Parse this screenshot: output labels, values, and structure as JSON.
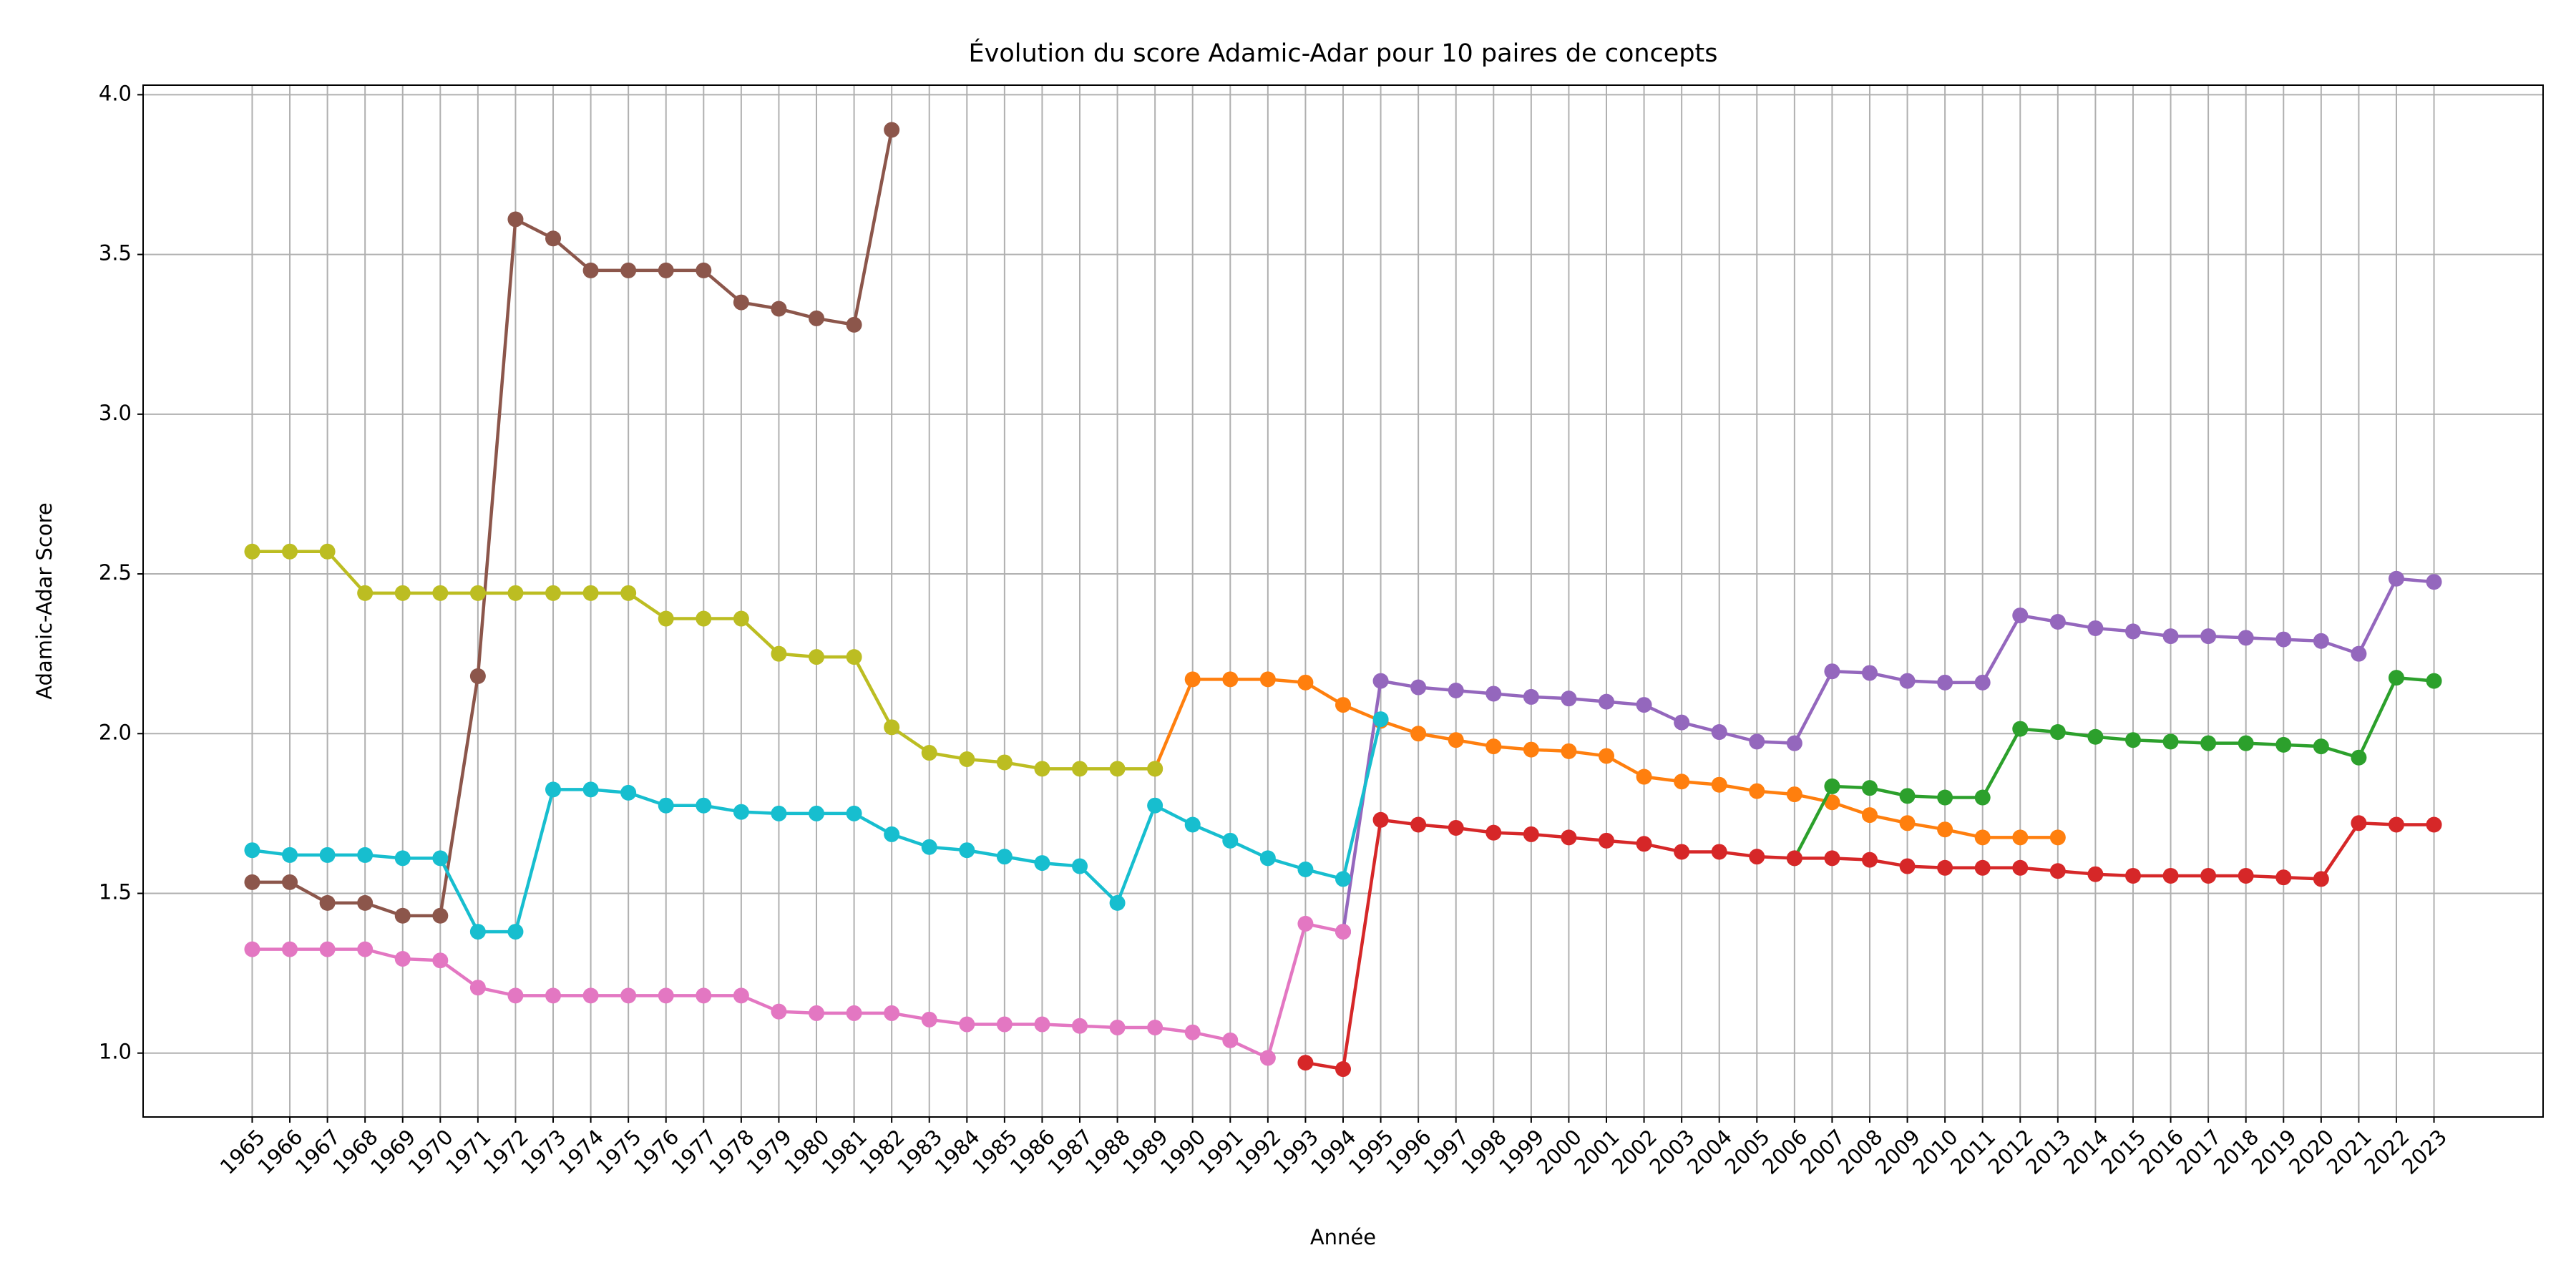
{
  "chart_data": {
    "type": "line",
    "title": "Évolution du score Adamic-Adar pour 10 paires de concepts",
    "xlabel": "Année",
    "ylabel": "Adamic-Adar Score",
    "x": [
      1965,
      1966,
      1967,
      1968,
      1969,
      1970,
      1971,
      1972,
      1973,
      1974,
      1975,
      1976,
      1977,
      1978,
      1979,
      1980,
      1981,
      1982,
      1983,
      1984,
      1985,
      1986,
      1987,
      1988,
      1989,
      1990,
      1991,
      1992,
      1993,
      1994,
      1995,
      1996,
      1997,
      1998,
      1999,
      2000,
      2001,
      2002,
      2003,
      2004,
      2005,
      2006,
      2007,
      2008,
      2009,
      2010,
      2011,
      2012,
      2013,
      2014,
      2015,
      2016,
      2017,
      2018,
      2019,
      2020,
      2021,
      2022,
      2023
    ],
    "xticks": [
      1965,
      1966,
      1967,
      1968,
      1969,
      1970,
      1971,
      1972,
      1973,
      1974,
      1975,
      1976,
      1977,
      1978,
      1979,
      1980,
      1981,
      1982,
      1983,
      1984,
      1985,
      1986,
      1987,
      1988,
      1989,
      1990,
      1991,
      1992,
      1993,
      1994,
      1995,
      1996,
      1997,
      1998,
      1999,
      2000,
      2001,
      2002,
      2003,
      2004,
      2005,
      2006,
      2007,
      2008,
      2009,
      2010,
      2011,
      2012,
      2013,
      2014,
      2015,
      2016,
      2017,
      2018,
      2019,
      2020,
      2021,
      2022,
      2023
    ],
    "xlim": [
      1962.1,
      2025.9
    ],
    "ylim": [
      0.8,
      4.03
    ],
    "yticks": [
      {
        "value": 1.0,
        "label": "1.0"
      },
      {
        "value": 1.5,
        "label": "1.5"
      },
      {
        "value": 2.0,
        "label": "2.0"
      },
      {
        "value": 2.5,
        "label": "2.5"
      },
      {
        "value": 3.0,
        "label": "3.0"
      },
      {
        "value": 3.5,
        "label": "3.5"
      },
      {
        "value": 4.0,
        "label": "4.0"
      }
    ],
    "grid": true,
    "series": [
      {
        "color": "#ff7f0e",
        "values": [
          null,
          null,
          null,
          null,
          null,
          null,
          null,
          null,
          null,
          null,
          null,
          null,
          null,
          null,
          null,
          null,
          null,
          null,
          null,
          null,
          null,
          null,
          null,
          null,
          1.89,
          2.17,
          2.17,
          2.17,
          2.16,
          2.09,
          2.04,
          2.0,
          1.98,
          1.96,
          1.95,
          1.945,
          1.93,
          1.865,
          1.85,
          1.84,
          1.82,
          1.81,
          1.785,
          1.745,
          1.72,
          1.7,
          1.675,
          1.675,
          1.675,
          null,
          null,
          null,
          null,
          null,
          null,
          null,
          null,
          null,
          null
        ]
      },
      {
        "color": "#2ca02c",
        "values": [
          null,
          null,
          null,
          null,
          null,
          null,
          null,
          null,
          null,
          null,
          null,
          null,
          null,
          null,
          null,
          null,
          null,
          null,
          null,
          null,
          null,
          null,
          null,
          null,
          null,
          null,
          null,
          null,
          null,
          null,
          null,
          null,
          null,
          null,
          null,
          null,
          null,
          null,
          null,
          null,
          null,
          1.61,
          1.835,
          1.83,
          1.805,
          1.8,
          1.8,
          2.015,
          2.005,
          1.99,
          1.98,
          1.975,
          1.97,
          1.97,
          1.965,
          1.96,
          1.925,
          2.175,
          2.165
        ]
      },
      {
        "color": "#d62728",
        "values": [
          null,
          null,
          null,
          null,
          null,
          null,
          null,
          null,
          null,
          null,
          null,
          null,
          null,
          null,
          null,
          null,
          null,
          null,
          null,
          null,
          null,
          null,
          null,
          null,
          null,
          null,
          null,
          null,
          0.97,
          0.95,
          1.73,
          1.715,
          1.705,
          1.69,
          1.685,
          1.675,
          1.665,
          1.655,
          1.63,
          1.63,
          1.615,
          1.61,
          1.61,
          1.605,
          1.585,
          1.58,
          1.58,
          1.58,
          1.57,
          1.56,
          1.555,
          1.555,
          1.555,
          1.555,
          1.55,
          1.545,
          1.72,
          1.715,
          1.715
        ]
      },
      {
        "color": "#9467bd",
        "values": [
          null,
          null,
          null,
          null,
          null,
          null,
          null,
          null,
          null,
          null,
          null,
          null,
          null,
          null,
          null,
          null,
          null,
          null,
          null,
          null,
          null,
          null,
          null,
          null,
          null,
          null,
          null,
          null,
          null,
          1.38,
          2.165,
          2.145,
          2.135,
          2.125,
          2.115,
          2.11,
          2.1,
          2.09,
          2.035,
          2.005,
          1.975,
          1.97,
          2.195,
          2.19,
          2.165,
          2.16,
          2.16,
          2.37,
          2.35,
          2.33,
          2.32,
          2.305,
          2.305,
          2.3,
          2.295,
          2.29,
          2.25,
          2.485,
          2.475
        ]
      },
      {
        "color": "#8c564b",
        "values": [
          1.535,
          1.535,
          1.47,
          1.47,
          1.43,
          1.43,
          2.18,
          3.61,
          3.55,
          3.45,
          3.45,
          3.45,
          3.45,
          3.35,
          3.33,
          3.3,
          3.28,
          3.89,
          null,
          null,
          null,
          null,
          null,
          null,
          null,
          null,
          null,
          null,
          null,
          null,
          null,
          null,
          null,
          null,
          null,
          null,
          null,
          null,
          null,
          null,
          null,
          null,
          null,
          null,
          null,
          null,
          null,
          null,
          null,
          null,
          null,
          null,
          null,
          null,
          null,
          null,
          null,
          null,
          null
        ]
      },
      {
        "color": "#e377c2",
        "values": [
          1.325,
          1.325,
          1.325,
          1.325,
          1.295,
          1.29,
          1.205,
          1.18,
          1.18,
          1.18,
          1.18,
          1.18,
          1.18,
          1.18,
          1.13,
          1.125,
          1.125,
          1.125,
          1.105,
          1.09,
          1.09,
          1.09,
          1.085,
          1.08,
          1.08,
          1.065,
          1.04,
          0.985,
          1.405,
          1.38,
          null,
          null,
          null,
          null,
          null,
          null,
          null,
          null,
          null,
          null,
          null,
          null,
          null,
          null,
          null,
          null,
          null,
          null,
          null,
          null,
          null,
          null,
          null,
          null,
          null,
          null,
          null,
          null,
          null
        ]
      },
      {
        "color": "#bcbd22",
        "values": [
          2.57,
          2.57,
          2.57,
          2.44,
          2.44,
          2.44,
          2.44,
          2.44,
          2.44,
          2.44,
          2.44,
          2.36,
          2.36,
          2.36,
          2.25,
          2.24,
          2.24,
          2.02,
          1.94,
          1.92,
          1.91,
          1.89,
          1.89,
          1.89,
          1.89,
          null,
          null,
          null,
          null,
          null,
          null,
          null,
          null,
          null,
          null,
          null,
          null,
          null,
          null,
          null,
          null,
          null,
          null,
          null,
          null,
          null,
          null,
          null,
          null,
          null,
          null,
          null,
          null,
          null,
          null,
          null,
          null,
          null,
          null
        ]
      },
      {
        "color": "#17becf",
        "values": [
          1.635,
          1.62,
          1.62,
          1.62,
          1.61,
          1.61,
          1.38,
          1.38,
          1.825,
          1.825,
          1.815,
          1.775,
          1.775,
          1.755,
          1.75,
          1.75,
          1.75,
          1.685,
          1.645,
          1.635,
          1.615,
          1.595,
          1.585,
          1.47,
          1.775,
          1.715,
          1.665,
          1.61,
          1.575,
          1.545,
          2.045,
          null,
          null,
          null,
          null,
          null,
          null,
          null,
          null,
          null,
          null,
          null,
          null,
          null,
          null,
          null,
          null,
          null,
          null,
          null,
          null,
          null,
          null,
          null,
          null,
          null,
          null,
          null,
          null
        ]
      }
    ]
  }
}
